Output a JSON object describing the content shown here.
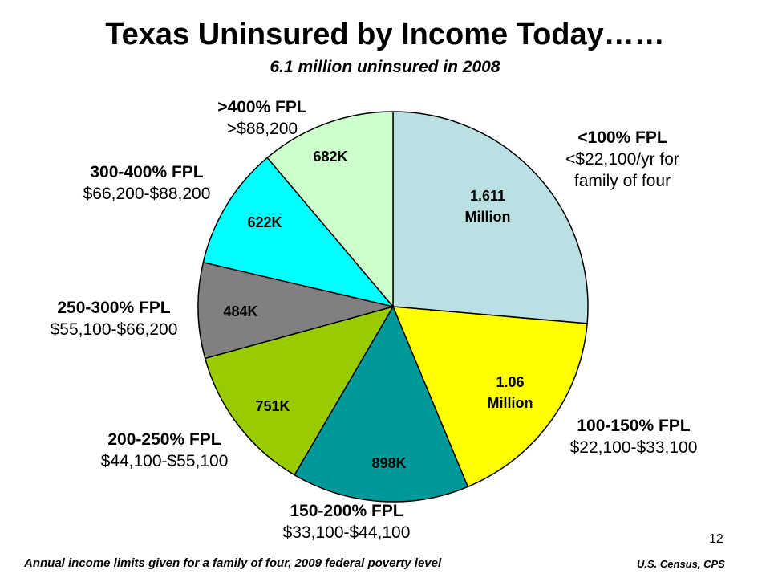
{
  "title": "Texas Uninsured by Income Today……",
  "subtitle": "6.1 million uninsured in 2008",
  "page_number": "12",
  "footnote": "Annual income limits given for a family of four, 2009 federal poverty level",
  "source": "U.S. Census, CPS",
  "chart_data": {
    "type": "pie",
    "start_angle_deg": 0,
    "direction": "clockwise",
    "slices": [
      {
        "category": "<100% FPL",
        "range": [
          "<$22,100/yr for",
          "family of four"
        ],
        "value": 1611000,
        "value_label": [
          "1.611",
          "Million"
        ],
        "color": "#BBE0E3"
      },
      {
        "category": "100-150% FPL",
        "range": [
          "$22,100-$33,100"
        ],
        "value": 1060000,
        "value_label": [
          "1.06",
          "Million"
        ],
        "color": "#FFFF00"
      },
      {
        "category": "150-200% FPL",
        "range": [
          "$33,100-$44,100"
        ],
        "value": 898000,
        "value_label": [
          "898K"
        ],
        "color": "#009999"
      },
      {
        "category": "200-250% FPL",
        "range": [
          "$44,100-$55,100"
        ],
        "value": 751000,
        "value_label": [
          "751K"
        ],
        "color": "#99CC00"
      },
      {
        "category": "250-300% FPL",
        "range": [
          "$55,100-$66,200"
        ],
        "value": 484000,
        "value_label": [
          "484K"
        ],
        "color": "#808080"
      },
      {
        "category": "300-400% FPL",
        "range": [
          "$66,200-$88,200"
        ],
        "value": 622000,
        "value_label": [
          "622K"
        ],
        "color": "#00FFFF"
      },
      {
        "category": ">400% FPL",
        "range": [
          ">$88,200"
        ],
        "value": 682000,
        "value_label": [
          "682K"
        ],
        "color": "#CCFFCC"
      }
    ]
  }
}
